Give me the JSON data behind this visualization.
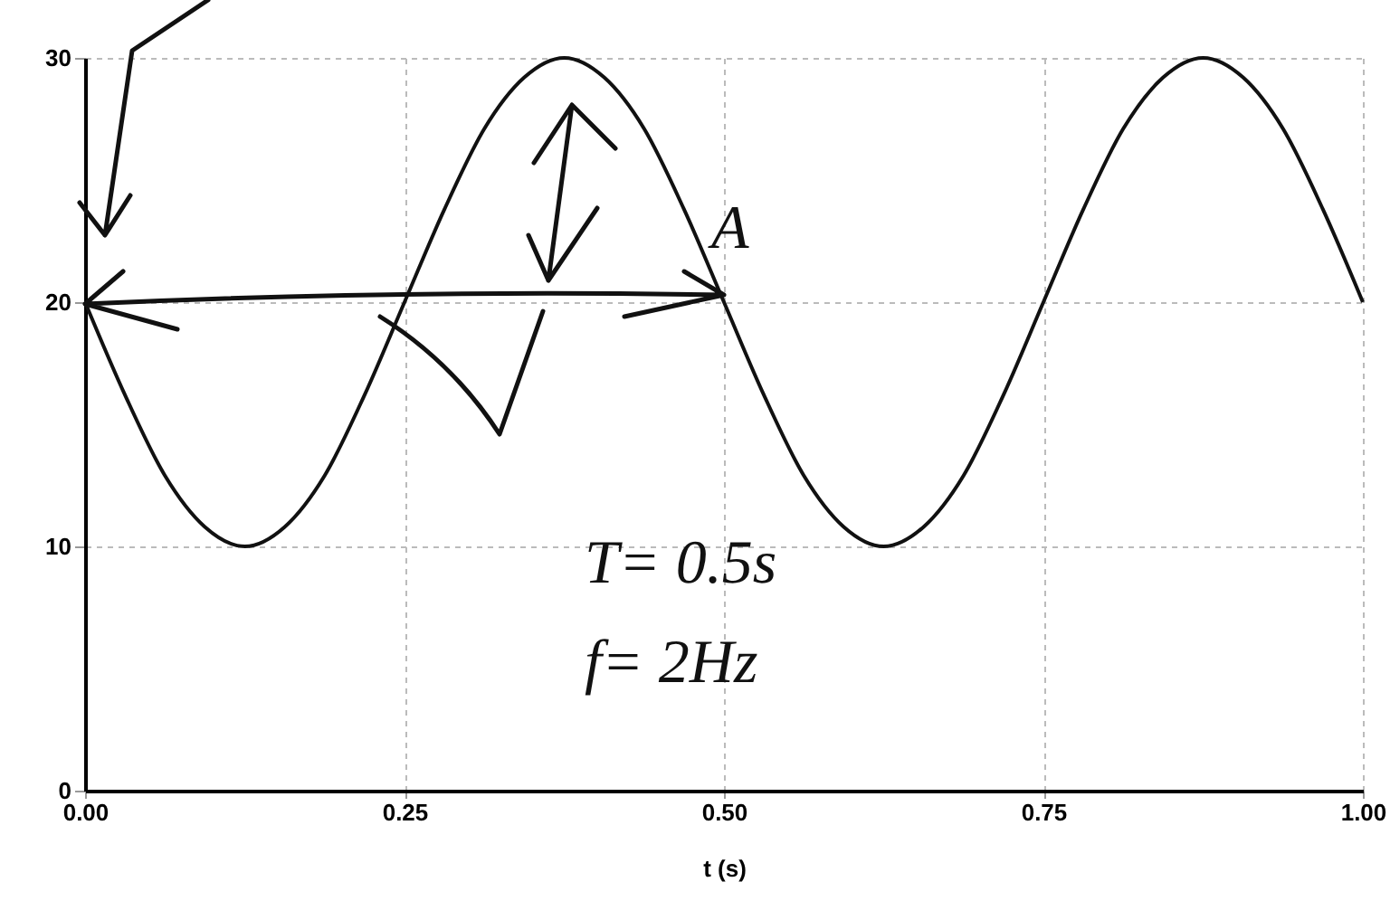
{
  "chart_data": {
    "type": "line",
    "xlabel": "t (s)",
    "x": [
      0,
      0.03125,
      0.0625,
      0.09375,
      0.125,
      0.15625,
      0.1875,
      0.21875,
      0.25,
      0.28125,
      0.3125,
      0.34375,
      0.375,
      0.40625,
      0.4375,
      0.46875,
      0.5,
      0.53125,
      0.5625,
      0.59375,
      0.625,
      0.65625,
      0.6875,
      0.71875,
      0.75,
      0.78125,
      0.8125,
      0.84375,
      0.875,
      0.90625,
      0.9375,
      0.96875,
      1
    ],
    "series": [
      {
        "color": "#111111",
        "values": [
          20,
          16.2,
          12.9,
          10.8,
          10,
          10.8,
          12.9,
          16.2,
          20,
          23.8,
          27.1,
          29.2,
          30,
          29.2,
          27.1,
          23.8,
          20,
          16.2,
          12.9,
          10.8,
          10,
          10.8,
          12.9,
          16.2,
          20,
          23.8,
          27.1,
          29.2,
          30,
          29.2,
          27.1,
          23.8,
          20
        ]
      }
    ],
    "xlim": [
      0,
      1
    ],
    "xticks": [
      {
        "value": 0,
        "label": "0.00"
      },
      {
        "value": 0.25,
        "label": "0.25"
      },
      {
        "value": 0.5,
        "label": "0.50"
      },
      {
        "value": 0.75,
        "label": "0.75"
      },
      {
        "value": 1,
        "label": "1.00"
      }
    ],
    "ylim": [
      0,
      30
    ],
    "yticks": [
      0,
      10,
      20,
      30
    ],
    "grid": true,
    "marker": "none",
    "line_style": "solid",
    "annotations": [
      "A",
      "T= 0.5s",
      "f= 2Hz"
    ]
  }
}
